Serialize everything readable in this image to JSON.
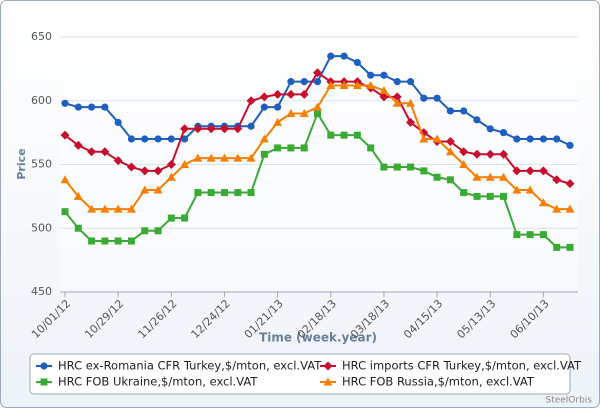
{
  "chart_data": {
    "type": "line",
    "y_label": "Price",
    "x_label": "Time (week.year)",
    "credit": "SteelOrbis",
    "categories": [
      "10/01/12",
      null,
      null,
      null,
      "10/29/12",
      null,
      null,
      null,
      "11/26/12",
      null,
      null,
      null,
      "12/24/12",
      null,
      null,
      null,
      "01/21/13",
      null,
      null,
      null,
      "02/18/13",
      null,
      null,
      null,
      "03/18/13",
      null,
      null,
      null,
      "04/15/13",
      null,
      null,
      null,
      "05/13/13",
      null,
      null,
      null,
      "06/10/13",
      null,
      null
    ],
    "ylim": [
      450,
      650
    ],
    "yticks": [
      450,
      500,
      550,
      600,
      650
    ],
    "grid": true,
    "series": [
      {
        "name": "HRC ex-Romania CFR Turkey,$/mton, excl.VAT",
        "color": "#1f5fbf",
        "marker": "circle",
        "values": [
          598,
          595,
          595,
          595,
          583,
          570,
          570,
          570,
          570,
          570,
          580,
          580,
          580,
          580,
          580,
          595,
          595,
          615,
          615,
          615,
          635,
          635,
          630,
          620,
          620,
          615,
          615,
          602,
          602,
          592,
          592,
          585,
          578,
          575,
          570,
          570,
          570,
          570,
          565
        ]
      },
      {
        "name": "HRC imports CFR Turkey,$/mton, excl.VAT",
        "color": "#c8102e",
        "marker": "diamond",
        "values": [
          573,
          565,
          560,
          560,
          553,
          548,
          545,
          545,
          550,
          578,
          578,
          578,
          578,
          578,
          600,
          603,
          605,
          605,
          605,
          622,
          615,
          615,
          615,
          610,
          603,
          603,
          583,
          575,
          568,
          568,
          560,
          558,
          558,
          558,
          545,
          545,
          545,
          538,
          535
        ]
      },
      {
        "name": "HRC FOB Ukraine,$/mton, excl.VAT",
        "color": "#3aaa35",
        "marker": "square",
        "values": [
          513,
          500,
          490,
          490,
          490,
          490,
          498,
          498,
          508,
          508,
          528,
          528,
          528,
          528,
          528,
          558,
          563,
          563,
          563,
          590,
          573,
          573,
          573,
          563,
          548,
          548,
          548,
          545,
          540,
          538,
          528,
          525,
          525,
          525,
          495,
          495,
          495,
          485,
          485
        ]
      },
      {
        "name": "HRC FOB Russia,$/mton, excl.VAT",
        "color": "#f77f00",
        "marker": "triangle",
        "values": [
          538,
          525,
          515,
          515,
          515,
          515,
          530,
          530,
          540,
          550,
          555,
          555,
          555,
          555,
          555,
          570,
          583,
          590,
          590,
          595,
          612,
          612,
          612,
          612,
          608,
          598,
          598,
          570,
          570,
          560,
          550,
          540,
          540,
          540,
          530,
          530,
          520,
          515,
          515
        ]
      }
    ]
  }
}
